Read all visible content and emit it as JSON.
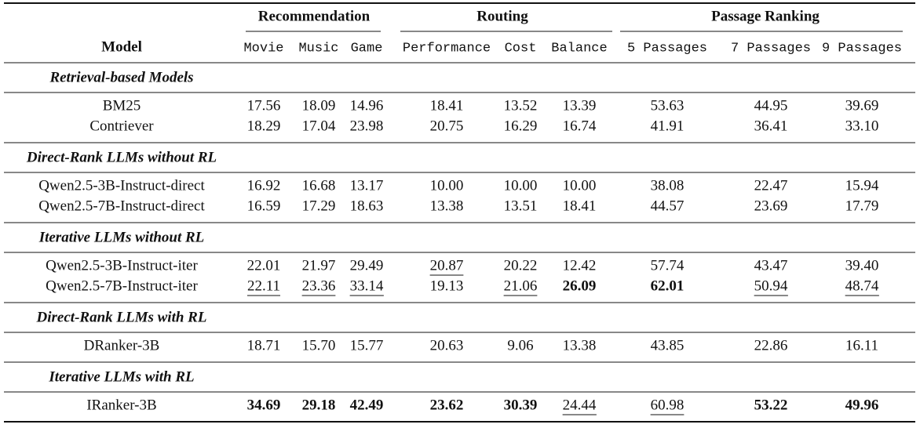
{
  "table": {
    "groups": [
      {
        "title": "Recommendation",
        "columns": [
          "Movie",
          "Music",
          "Game"
        ]
      },
      {
        "title": "Routing",
        "columns": [
          "Performance",
          "Cost",
          "Balance"
        ]
      },
      {
        "title": "Passage Ranking",
        "columns": [
          "5 Passages",
          "7 Passages",
          "9 Passages"
        ]
      }
    ],
    "model_header": "Model",
    "sections": [
      {
        "title": "Retrieval-based Models",
        "rows": [
          {
            "model": "BM25",
            "values": [
              "17.56",
              "18.09",
              "14.96",
              "18.41",
              "13.52",
              "13.39",
              "53.63",
              "44.95",
              "39.69"
            ]
          },
          {
            "model": "Contriever",
            "values": [
              "18.29",
              "17.04",
              "23.98",
              "20.75",
              "16.29",
              "16.74",
              "41.91",
              "36.41",
              "33.10"
            ]
          }
        ]
      },
      {
        "title": "Direct-Rank LLMs without RL",
        "rows": [
          {
            "model": "Qwen2.5-3B-Instruct-direct",
            "values": [
              "16.92",
              "16.68",
              "13.17",
              "10.00",
              "10.00",
              "10.00",
              "38.08",
              "22.47",
              "15.94"
            ]
          },
          {
            "model": "Qwen2.5-7B-Instruct-direct",
            "values": [
              "16.59",
              "17.29",
              "18.63",
              "13.38",
              "13.51",
              "18.41",
              "44.57",
              "23.69",
              "17.79"
            ]
          }
        ]
      },
      {
        "title": "Iterative LLMs without RL",
        "rows": [
          {
            "model": "Qwen2.5-3B-Instruct-iter",
            "values": [
              "22.01",
              "21.97",
              "29.49",
              "20.87",
              "20.22",
              "12.42",
              "57.74",
              "43.47",
              "39.40"
            ],
            "underline": [
              3
            ]
          },
          {
            "model": "Qwen2.5-7B-Instruct-iter",
            "values": [
              "22.11",
              "23.36",
              "33.14",
              "19.13",
              "21.06",
              "26.09",
              "62.01",
              "50.94",
              "48.74"
            ],
            "bold": [
              5,
              6
            ],
            "underline": [
              0,
              1,
              2,
              4,
              7,
              8
            ]
          }
        ]
      },
      {
        "title": "Direct-Rank LLMs with RL",
        "rows": [
          {
            "model": "DRanker-3B",
            "values": [
              "18.71",
              "15.70",
              "15.77",
              "20.63",
              "9.06",
              "13.38",
              "43.85",
              "22.86",
              "16.11"
            ]
          }
        ]
      },
      {
        "title": "Iterative LLMs with RL",
        "rows": [
          {
            "model": "IRanker-3B",
            "values": [
              "34.69",
              "29.18",
              "42.49",
              "23.62",
              "30.39",
              "24.44",
              "60.98",
              "53.22",
              "49.96"
            ],
            "bold": [
              0,
              1,
              2,
              3,
              4,
              7,
              8
            ],
            "underline": [
              5,
              6
            ]
          }
        ]
      }
    ]
  }
}
